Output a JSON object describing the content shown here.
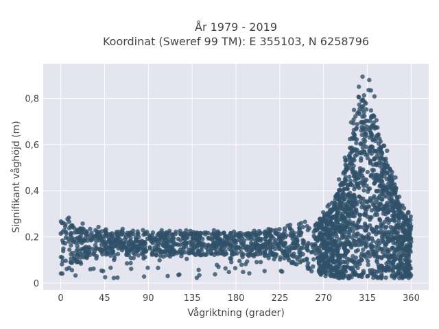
{
  "chart_data": {
    "type": "scatter",
    "title_lines": [
      "År 1979 - 2019",
      "Koordinat (Sweref 99 TM): E 355103, N 6258796"
    ],
    "xlabel": "Vågriktning (grader)",
    "ylabel": "Signifikant våghöjd (m)",
    "xlim": [
      -18,
      378
    ],
    "ylim": [
      -0.03,
      0.95
    ],
    "x_ticks": [
      0,
      45,
      90,
      135,
      180,
      225,
      270,
      315,
      360
    ],
    "x_tick_labels": [
      "0",
      "45",
      "90",
      "135",
      "180",
      "225",
      "270",
      "315",
      "360"
    ],
    "y_ticks": [
      0,
      0.2,
      0.4,
      0.6,
      0.8
    ],
    "y_tick_labels": [
      "0",
      "0,2",
      "0,4",
      "0,6",
      "0,8"
    ],
    "grid": true,
    "marker_color": "#2f5069",
    "plot_bgcolor": "#e5e5ef",
    "gridcolor": "#ffffff",
    "envelope": {
      "x": [
        0,
        5,
        10,
        20,
        30,
        45,
        60,
        90,
        120,
        150,
        180,
        210,
        225,
        240,
        255,
        265,
        270,
        275,
        280,
        285,
        290,
        295,
        300,
        305,
        310,
        315,
        320,
        325,
        330,
        335,
        340,
        345,
        350,
        355,
        360
      ],
      "upper": [
        0.31,
        0.29,
        0.28,
        0.26,
        0.25,
        0.24,
        0.24,
        0.23,
        0.23,
        0.23,
        0.23,
        0.24,
        0.25,
        0.26,
        0.27,
        0.29,
        0.31,
        0.34,
        0.38,
        0.44,
        0.52,
        0.64,
        0.76,
        0.85,
        0.9,
        0.91,
        0.86,
        0.76,
        0.66,
        0.6,
        0.54,
        0.44,
        0.35,
        0.32,
        0.3
      ],
      "lower": [
        0.04,
        0.04,
        0.06,
        0.1,
        0.12,
        0.12,
        0.12,
        0.12,
        0.12,
        0.12,
        0.12,
        0.12,
        0.11,
        0.08,
        0.05,
        0.04,
        0.03,
        0.02,
        0.02,
        0.02,
        0.02,
        0.02,
        0.02,
        0.02,
        0.02,
        0.02,
        0.02,
        0.02,
        0.02,
        0.02,
        0.02,
        0.02,
        0.02,
        0.02,
        0.02
      ]
    }
  }
}
